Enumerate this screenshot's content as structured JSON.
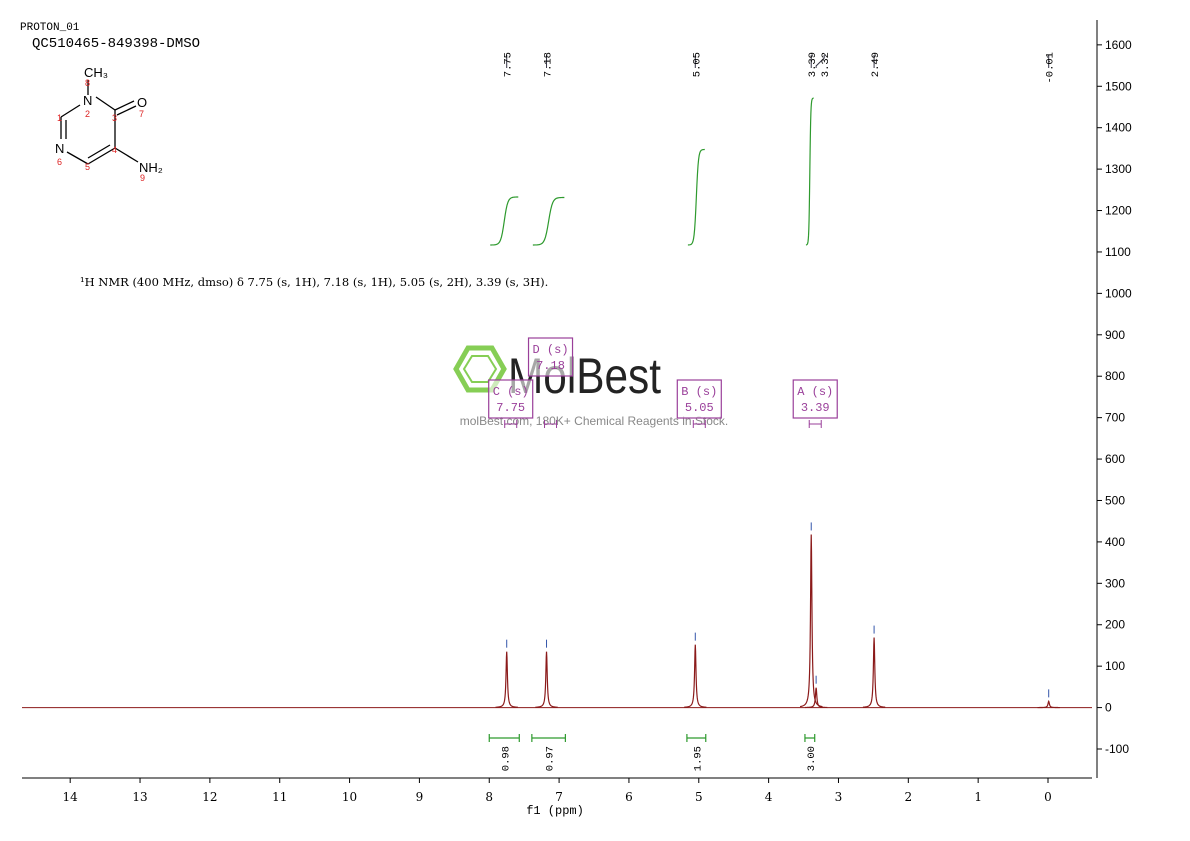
{
  "header": {
    "experiment": "PROTON_01",
    "sample": "QC510465-849398-DMSO"
  },
  "molecule": {
    "atoms": [
      "CH₃",
      "N",
      "O",
      "N",
      "NH₂"
    ],
    "numbers": [
      "1",
      "2",
      "3",
      "4",
      "5",
      "6",
      "7",
      "8",
      "9"
    ]
  },
  "description": "¹H NMR (400 MHz, dmso) δ 7.75 (s, 1H), 7.18 (s, 1H), 5.05 (s, 2H), 3.39 (s, 3H).",
  "watermark": {
    "brand": "MolBest",
    "slogan": "molBest.com, 180K+ Chemical Reagents in Stock."
  },
  "chart_data": {
    "type": "nmr",
    "x_label": "f1 (ppm)",
    "xlim": [
      14.69,
      -0.63
    ],
    "xticks": [
      14,
      13,
      12,
      11,
      10,
      9,
      8,
      7,
      6,
      5,
      4,
      3,
      2,
      1,
      0
    ],
    "ylim": [
      -170,
      1660
    ],
    "yticks": [
      -100,
      0,
      100,
      200,
      300,
      400,
      500,
      600,
      700,
      800,
      900,
      1000,
      1100,
      1200,
      1300,
      1400,
      1500,
      1600
    ],
    "color": "#8b1a1a",
    "integral_color": "#2e9a2e",
    "multiplet_color": "#9a3f9a",
    "peaks": [
      {
        "ppm": 7.75,
        "height": 135
      },
      {
        "ppm": 7.18,
        "height": 135
      },
      {
        "ppm": 5.05,
        "height": 152
      },
      {
        "ppm": 3.39,
        "height": 418
      },
      {
        "ppm": 3.32,
        "height": 48
      },
      {
        "ppm": 2.49,
        "height": 169
      },
      {
        "ppm": -0.01,
        "height": 15
      }
    ],
    "integrals": [
      {
        "from": 8.0,
        "to": 7.57,
        "value": 0.98
      },
      {
        "from": 7.39,
        "to": 6.91,
        "value": 0.97
      },
      {
        "from": 5.17,
        "to": 4.9,
        "value": 1.95
      },
      {
        "from": 3.48,
        "to": 3.34,
        "value": 3.0,
        "value_label": "3.00"
      }
    ],
    "multiplets": [
      {
        "label": "C (s)",
        "shift": 7.75
      },
      {
        "label": "D (s)",
        "shift": 7.18
      },
      {
        "label": "B (s)",
        "shift": 5.05
      },
      {
        "label": "A (s)",
        "shift": 3.39
      }
    ]
  }
}
